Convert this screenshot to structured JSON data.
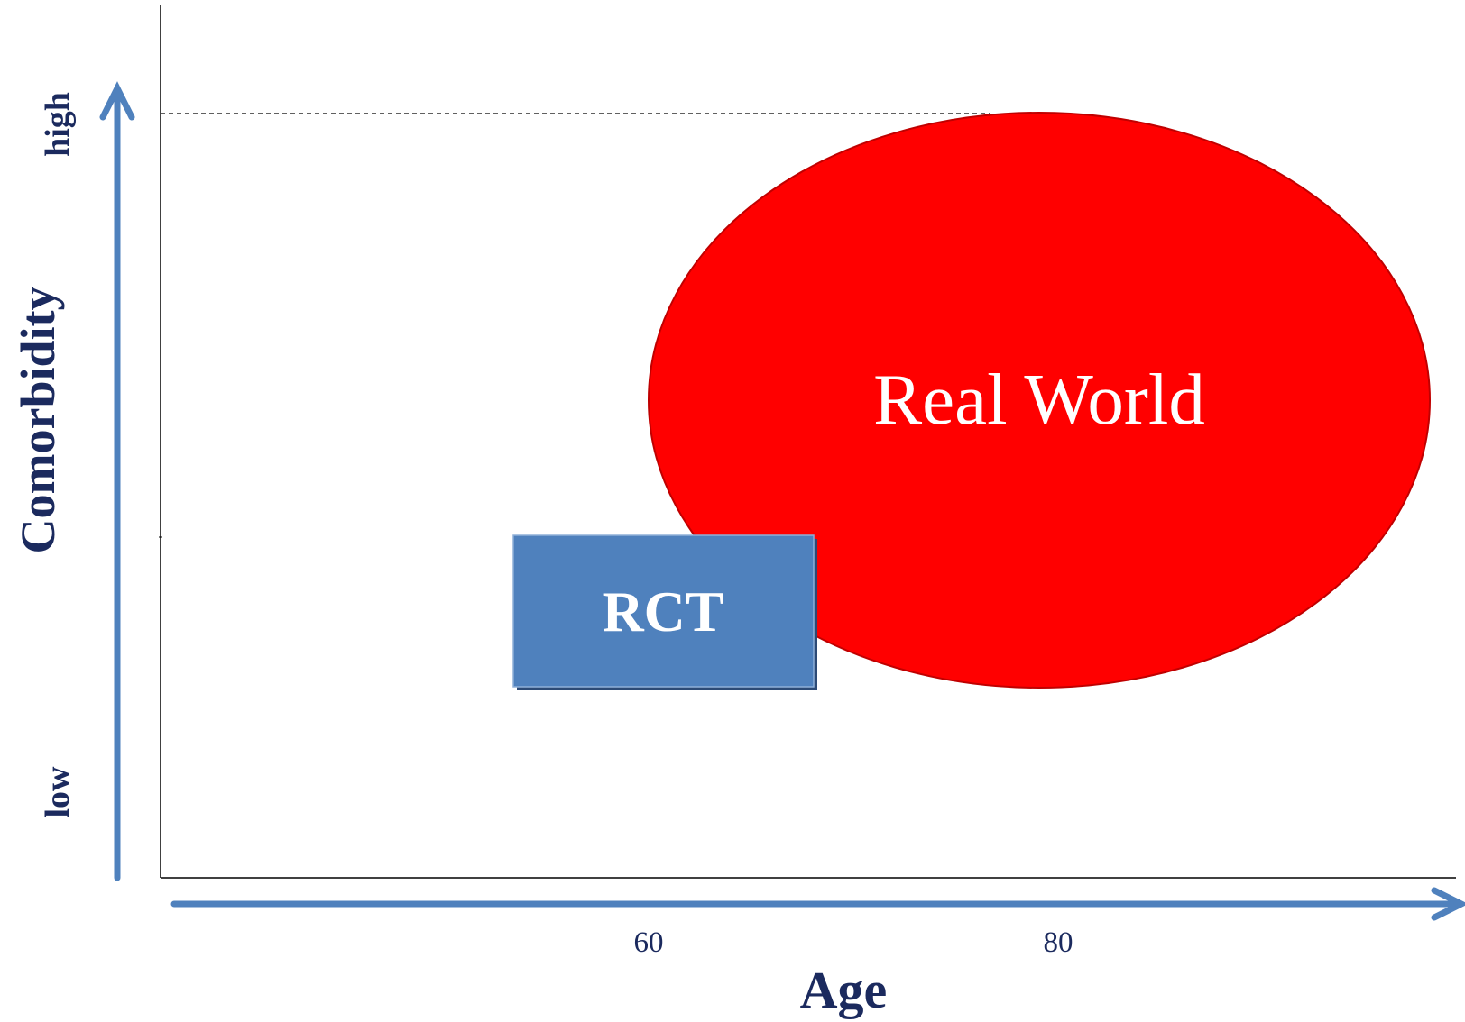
{
  "axes": {
    "y_label": "Comorbidity",
    "y_high": "high",
    "y_low": "low",
    "x_label": "Age",
    "x_ticks": [
      "60",
      "80"
    ]
  },
  "shapes": {
    "real_world": "Real World",
    "rct": "RCT"
  }
}
